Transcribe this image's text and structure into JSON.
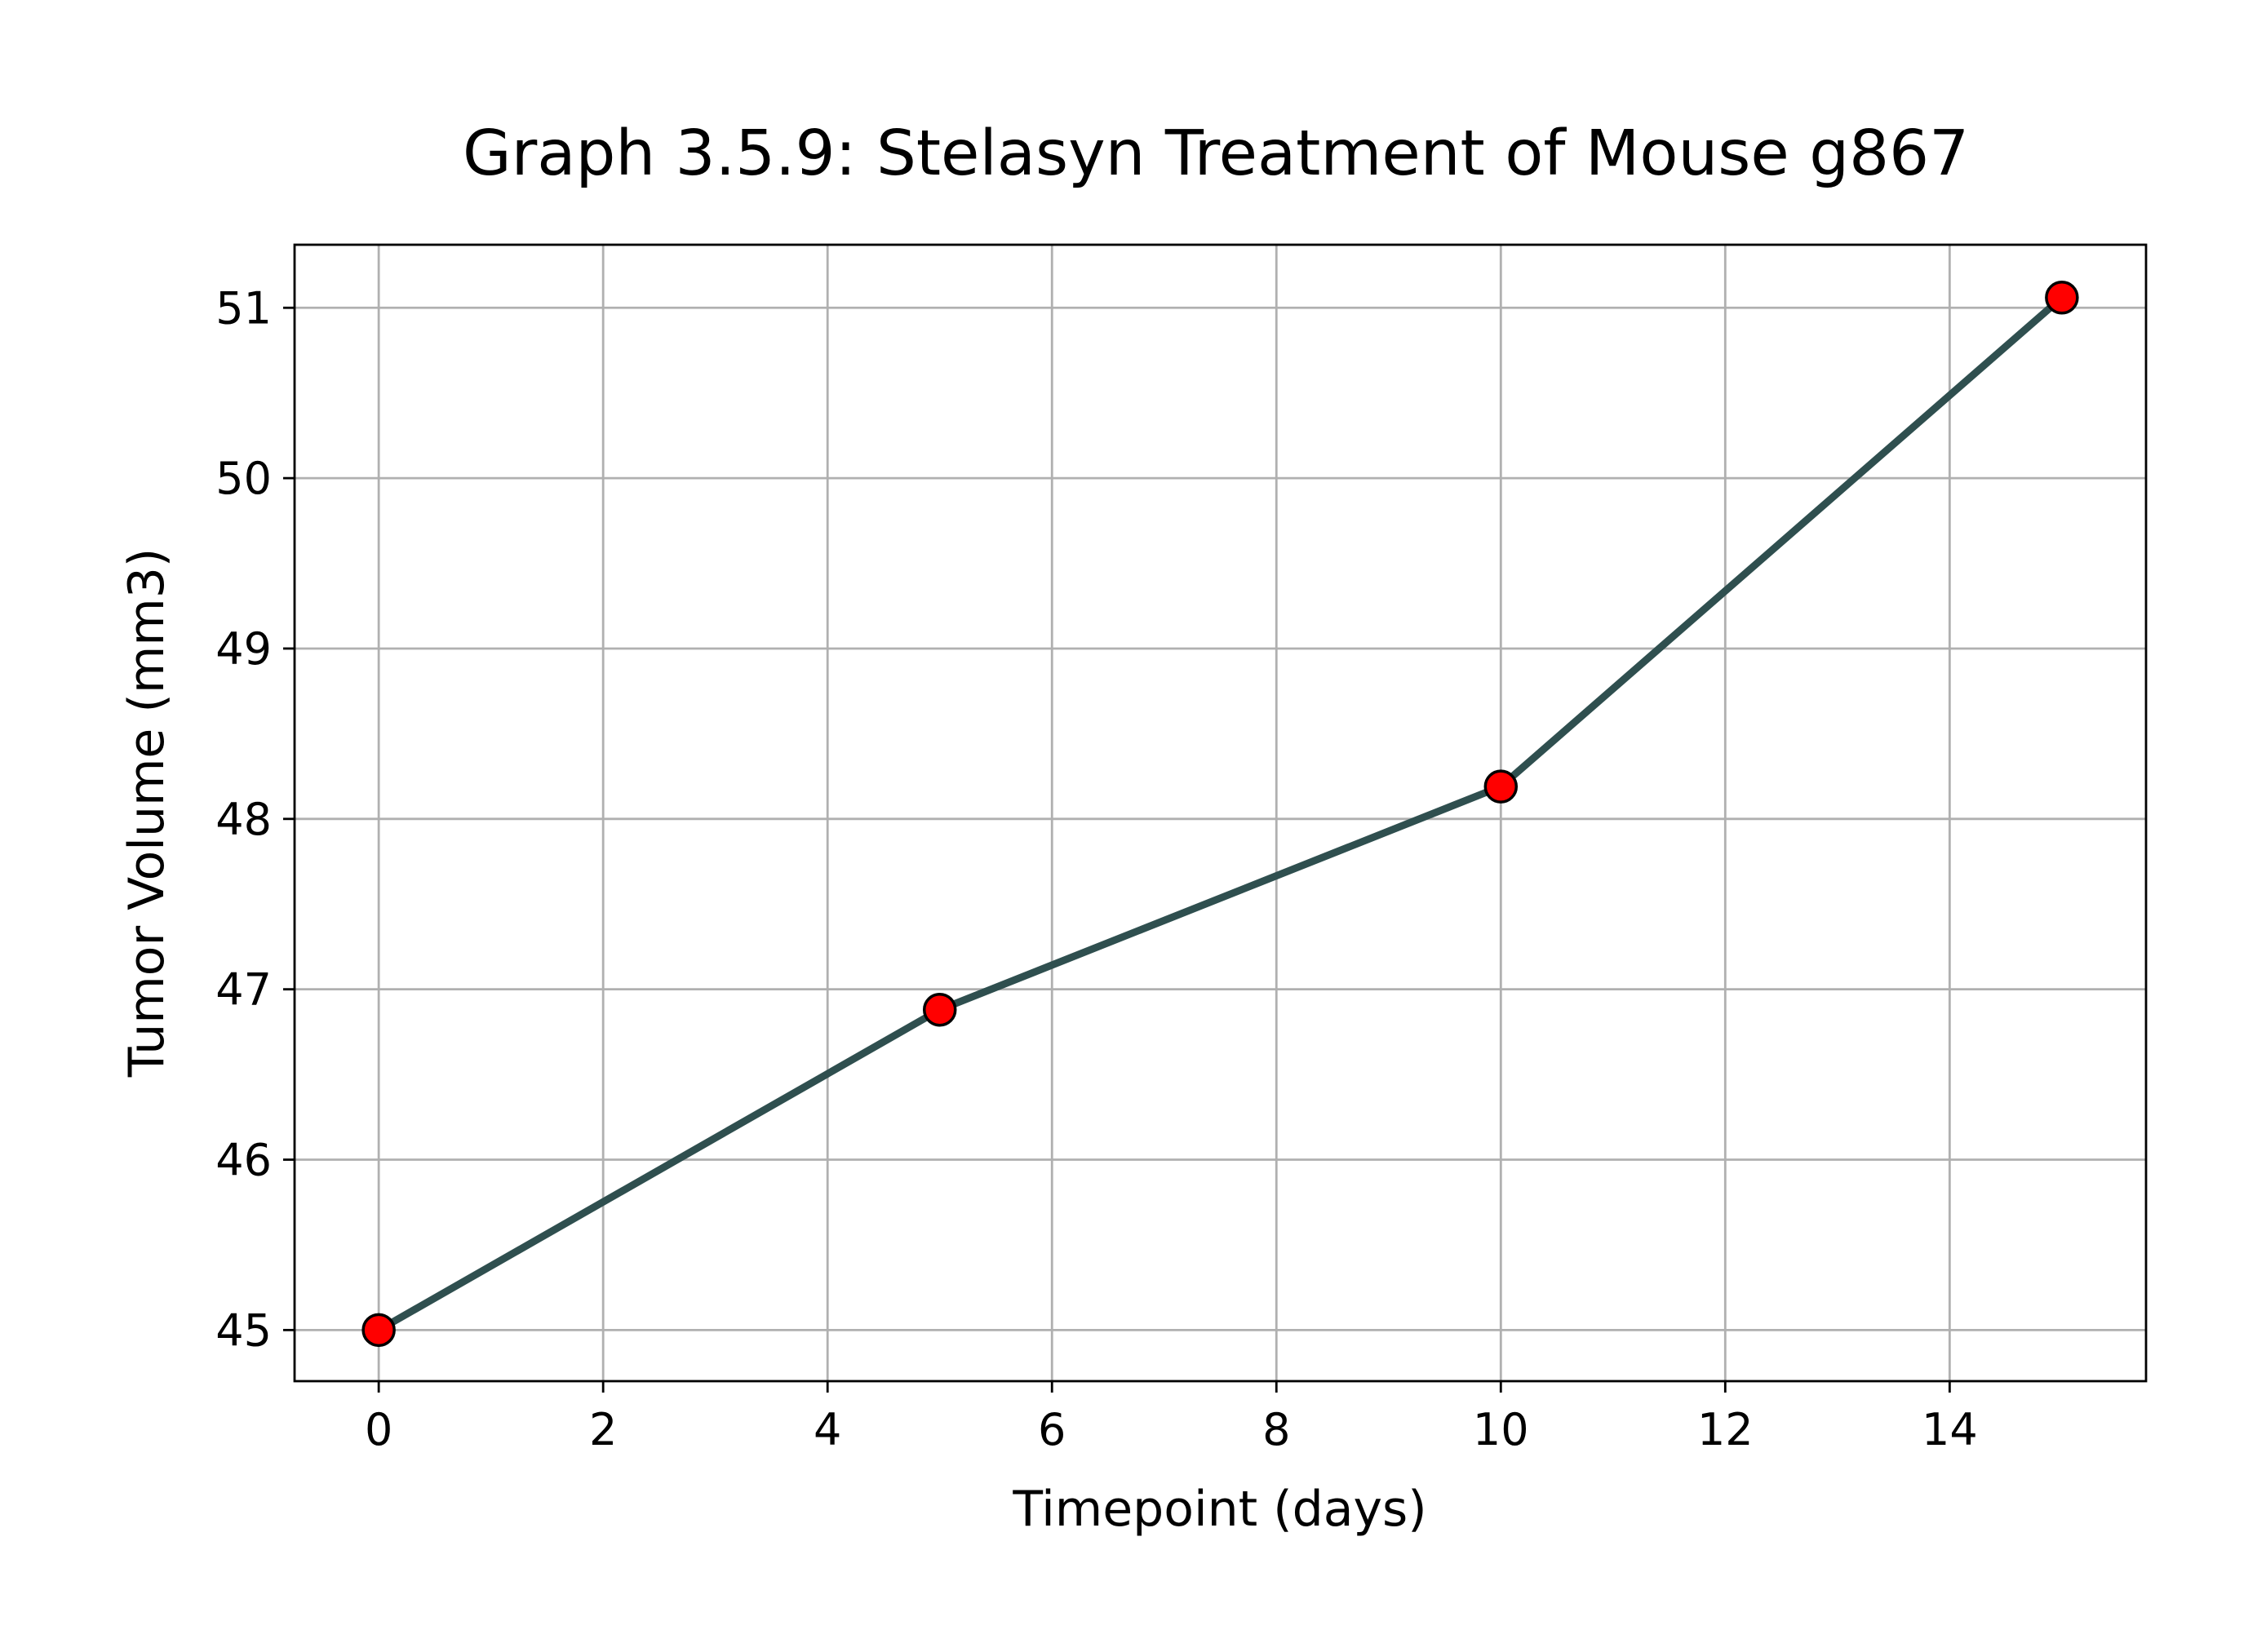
{
  "chart_data": {
    "type": "line",
    "title": "Graph 3.5.9: Stelasyn Treatment of Mouse g867",
    "xlabel": "Timepoint (days)",
    "ylabel": "Tumor Volume (mm3)",
    "x": [
      0,
      5,
      10,
      15
    ],
    "series": [
      {
        "values": [
          45.0,
          46.88,
          48.19,
          51.06
        ],
        "line_color": "#2f4f4f",
        "marker_color": "#ff0000",
        "marker_edge_color": "#000000"
      }
    ],
    "xlim": [
      -0.75,
      15.75
    ],
    "ylim": [
      44.7,
      51.37
    ],
    "x_ticks": [
      0,
      2,
      4,
      6,
      8,
      10,
      12,
      14
    ],
    "y_ticks": [
      45,
      46,
      47,
      48,
      49,
      50,
      51
    ],
    "x_tick_labels": [
      "0",
      "2",
      "4",
      "6",
      "8",
      "10",
      "12",
      "14"
    ],
    "y_tick_labels": [
      "45",
      "46",
      "47",
      "48",
      "49",
      "50",
      "51"
    ],
    "grid": true,
    "legend": "none"
  }
}
